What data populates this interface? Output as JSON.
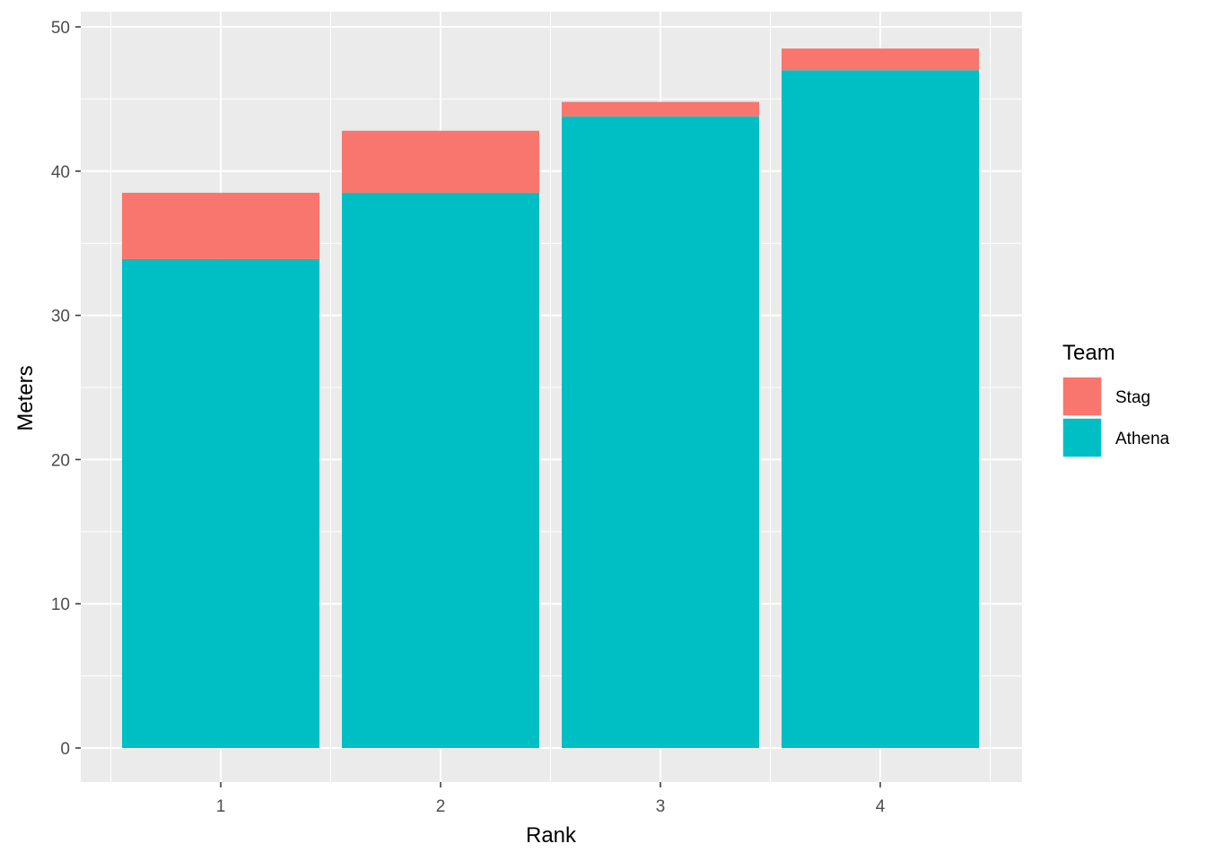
{
  "chart_data": {
    "type": "bar",
    "stacked": true,
    "categories": [
      "1",
      "2",
      "3",
      "4"
    ],
    "series": [
      {
        "name": "Athena",
        "values": [
          33.9,
          38.5,
          43.8,
          47.0
        ],
        "color": "#00BFC4"
      },
      {
        "name": "Stag",
        "values": [
          4.6,
          4.3,
          1.0,
          1.5
        ],
        "color": "#F8766D"
      }
    ],
    "xlabel": "Rank",
    "ylabel": "Meters",
    "ylim": [
      0,
      50
    ],
    "yticks": [
      0,
      10,
      20,
      30,
      40,
      50
    ],
    "grid": true,
    "panel_background": "#EBEBEB",
    "legend": {
      "title": "Team",
      "position": "right",
      "entries": [
        {
          "label": "Stag",
          "color": "#F8766D"
        },
        {
          "label": "Athena",
          "color": "#00BFC4"
        }
      ]
    }
  }
}
